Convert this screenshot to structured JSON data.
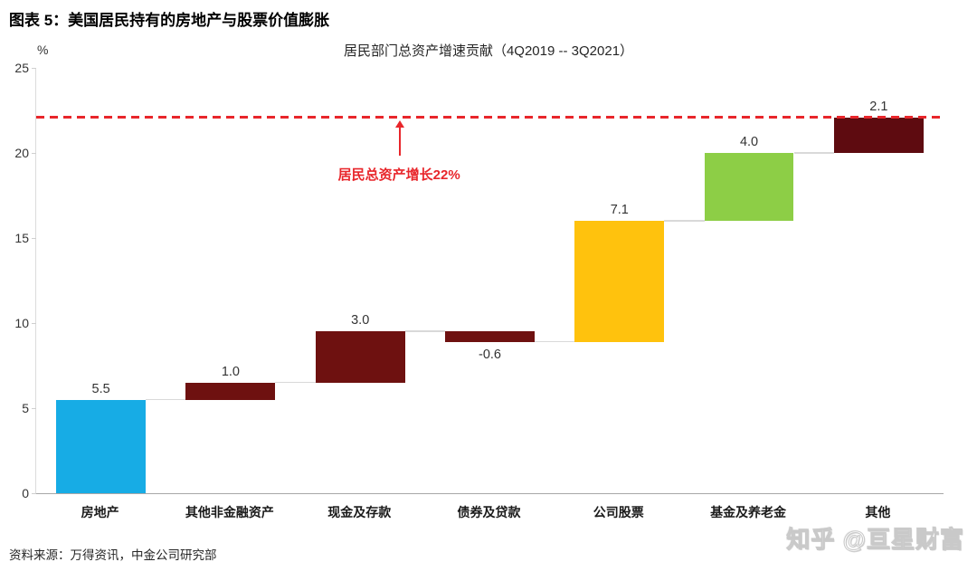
{
  "page": {
    "title": "图表 5：美国居民持有的房地产与股票价值膨胀",
    "source": "资料来源：万得资讯，中金公司研究部",
    "watermark": "知乎 @亘星财富"
  },
  "chart_data": {
    "type": "bar",
    "subtype": "waterfall",
    "title": "居民部门总资产增速贡献（4Q2019 -- 3Q2021）",
    "xlabel": "",
    "ylabel": "%",
    "ylim": [
      0,
      25
    ],
    "yticks": [
      0,
      5,
      10,
      15,
      20,
      25
    ],
    "grid": false,
    "legend": null,
    "categories": [
      "房地产",
      "其他非金融资产",
      "现金及存款",
      "债券及贷款",
      "公司股票",
      "基金及养老金",
      "其他"
    ],
    "values": [
      5.5,
      1.0,
      3.0,
      -0.6,
      7.1,
      4.0,
      2.1
    ],
    "cumulative_levels": [
      0,
      5.5,
      6.5,
      9.5,
      8.9,
      16.0,
      20.0,
      22.1
    ],
    "cumulative_total": 22.1,
    "bar_colors": [
      "#17ace5",
      "#6e1110",
      "#6e1110",
      "#6e1110",
      "#ffc20d",
      "#8dce46",
      "#5e0b10"
    ],
    "connector_color": "#d9d9d9",
    "reference_line": {
      "value": 22.1,
      "color": "#e8262b",
      "style": "dashed",
      "annotation": "居民总资产增长22%"
    }
  }
}
